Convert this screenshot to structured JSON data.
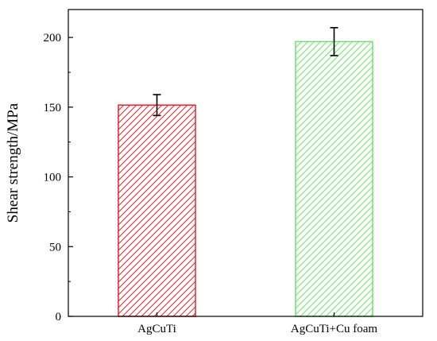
{
  "chart_data": {
    "type": "bar",
    "title": "",
    "xlabel": "",
    "ylabel": "Shear strength/MPa",
    "categories": [
      "AgCuTi",
      "AgCuTi+Cu foam"
    ],
    "values": [
      151.5,
      197
    ],
    "errors": [
      7.5,
      10
    ],
    "ylim": [
      0,
      220
    ],
    "yticks": [
      0,
      50,
      100,
      150,
      200
    ],
    "grid": false,
    "legend": "none",
    "fill": "hatched",
    "colors": [
      "#e8202a",
      "#6ee36a"
    ]
  }
}
